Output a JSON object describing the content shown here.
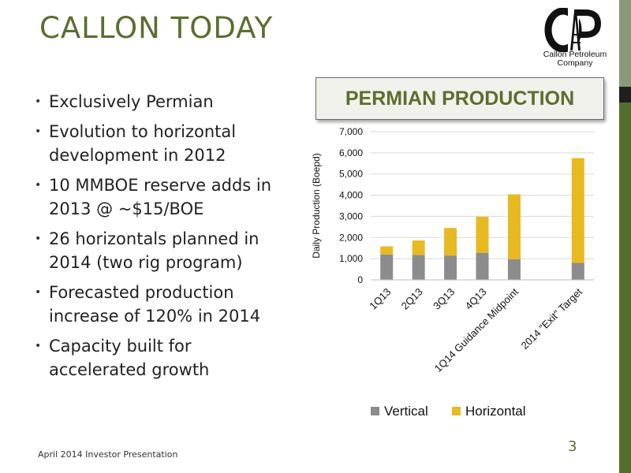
{
  "slide": {
    "title": "CALLON TODAY",
    "logo_text_line1": "Callon Petroleum",
    "logo_text_line2": "Company",
    "bullets": [
      "Exclusively Permian",
      "Evolution to horizontal development in 2012",
      "10 MMBOE reserve adds in 2013 @ ~$15/BOE",
      "26 horizontals planned in 2014 (two rig program)",
      "Forecasted production increase of 120% in 2014",
      "Capacity built for accelerated growth"
    ],
    "footer": "April 2014 Investor Presentation",
    "page_number": "3",
    "colors": {
      "accent": "#5a6e2e",
      "sidebar": "#526d2c"
    }
  },
  "chart_data": {
    "type": "bar",
    "stacked": true,
    "title": "PERMIAN PRODUCTION",
    "ylabel": "Daily Production (Boepd)",
    "xlabel": "",
    "categories": [
      "1Q13",
      "2Q13",
      "3Q13",
      "4Q13",
      "1Q14 Guidance Midpoint",
      "",
      "2014 \"Exit\" Target"
    ],
    "series": [
      {
        "name": "Vertical",
        "color": "#8c8c8c",
        "values": [
          1200,
          1180,
          1150,
          1280,
          980,
          null,
          800
        ]
      },
      {
        "name": "Horizontal",
        "color": "#e8ba22",
        "values": [
          380,
          680,
          1300,
          1700,
          3060,
          null,
          4950
        ]
      }
    ],
    "ylim": [
      0,
      7000
    ],
    "yticks": [
      0,
      1000,
      2000,
      3000,
      4000,
      5000,
      6000,
      7000
    ],
    "ytick_labels": [
      "0",
      "1,000",
      "2,000",
      "3,000",
      "4,000",
      "5,000",
      "6,000",
      "7,000"
    ],
    "grid": true,
    "legend": "bottom"
  }
}
